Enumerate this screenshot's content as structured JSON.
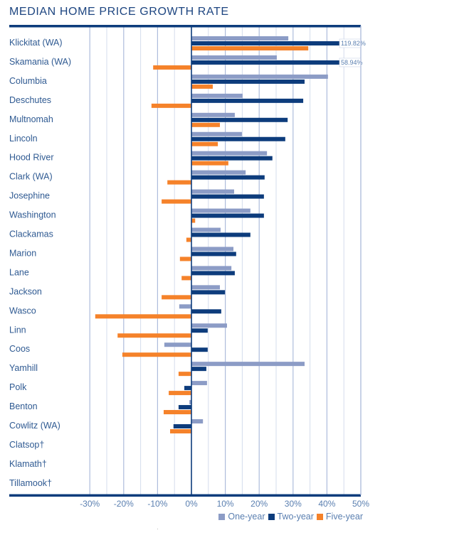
{
  "chart_data": {
    "type": "bar",
    "orientation": "horizontal",
    "title": "MEDIAN HOME PRICE GROWTH RATE",
    "xlabel": "",
    "ylabel": "",
    "xlim": [
      -30,
      50
    ],
    "x_ticks": [
      -30,
      -20,
      -10,
      0,
      10,
      20,
      30,
      40,
      50
    ],
    "x_tick_labels": [
      "-30%",
      "-20%",
      "-10%",
      "0%",
      "10%",
      "20%",
      "30%",
      "40%",
      "50%"
    ],
    "grid": true,
    "legend_position": "bottom-right",
    "categories": [
      "Klickitat (WA)",
      "Skamania (WA)",
      "Columbia",
      "Deschutes",
      "Multnomah",
      "Lincoln",
      "Hood River",
      "Clark (WA)",
      "Josephine",
      "Washington",
      "Clackamas",
      "Marion",
      "Lane",
      "Jackson",
      "Wasco",
      "Linn",
      "Coos",
      "Yamhill",
      "Polk",
      "Benton",
      "Cowlitz (WA)",
      "Clatsop†",
      "Klamath†",
      "Tillamook†"
    ],
    "series": [
      {
        "name": "One-year",
        "color": "#8c9cc6",
        "values": [
          28.6,
          25.2,
          40.3,
          15.1,
          12.8,
          14.9,
          22.3,
          16.0,
          12.6,
          17.4,
          8.6,
          12.4,
          11.8,
          8.4,
          -3.6,
          10.5,
          -8.0,
          33.4,
          4.6,
          -0.6,
          3.4,
          null,
          null,
          null
        ]
      },
      {
        "name": "Two-year",
        "color": "#0d3c7c",
        "values": [
          119.82,
          58.94,
          33.4,
          33.0,
          28.4,
          27.7,
          23.9,
          21.6,
          21.4,
          21.4,
          17.4,
          13.2,
          12.8,
          9.9,
          8.8,
          4.8,
          4.8,
          4.4,
          -2.1,
          -3.8,
          -5.3,
          null,
          null,
          null
        ]
      },
      {
        "name": "Five-year",
        "color": "#f5822a",
        "values": [
          34.5,
          -11.3,
          6.3,
          -11.8,
          8.4,
          7.8,
          10.9,
          -7.1,
          -8.8,
          1.1,
          -1.5,
          -3.4,
          -2.9,
          -8.8,
          -28.4,
          -21.8,
          -20.4,
          -3.8,
          -6.7,
          -8.2,
          -6.3,
          null,
          null,
          null
        ]
      }
    ],
    "annotations": [
      {
        "category": "Klickitat (WA)",
        "series": "Two-year",
        "text": "119.82%"
      },
      {
        "category": "Skamania (WA)",
        "series": "Two-year",
        "text": "58.94%"
      }
    ]
  },
  "legend": [
    {
      "label": "One-year",
      "color": "#8c9cc6"
    },
    {
      "label": "Two-year",
      "color": "#0d3c7c"
    },
    {
      "label": "Five-year",
      "color": "#f5822a"
    }
  ],
  "colors": {
    "frame": "#0d3c7c",
    "grid_major": "#aebcdc",
    "grid_minor": "#d4dcec",
    "zero_line": "#0d3c7c"
  }
}
